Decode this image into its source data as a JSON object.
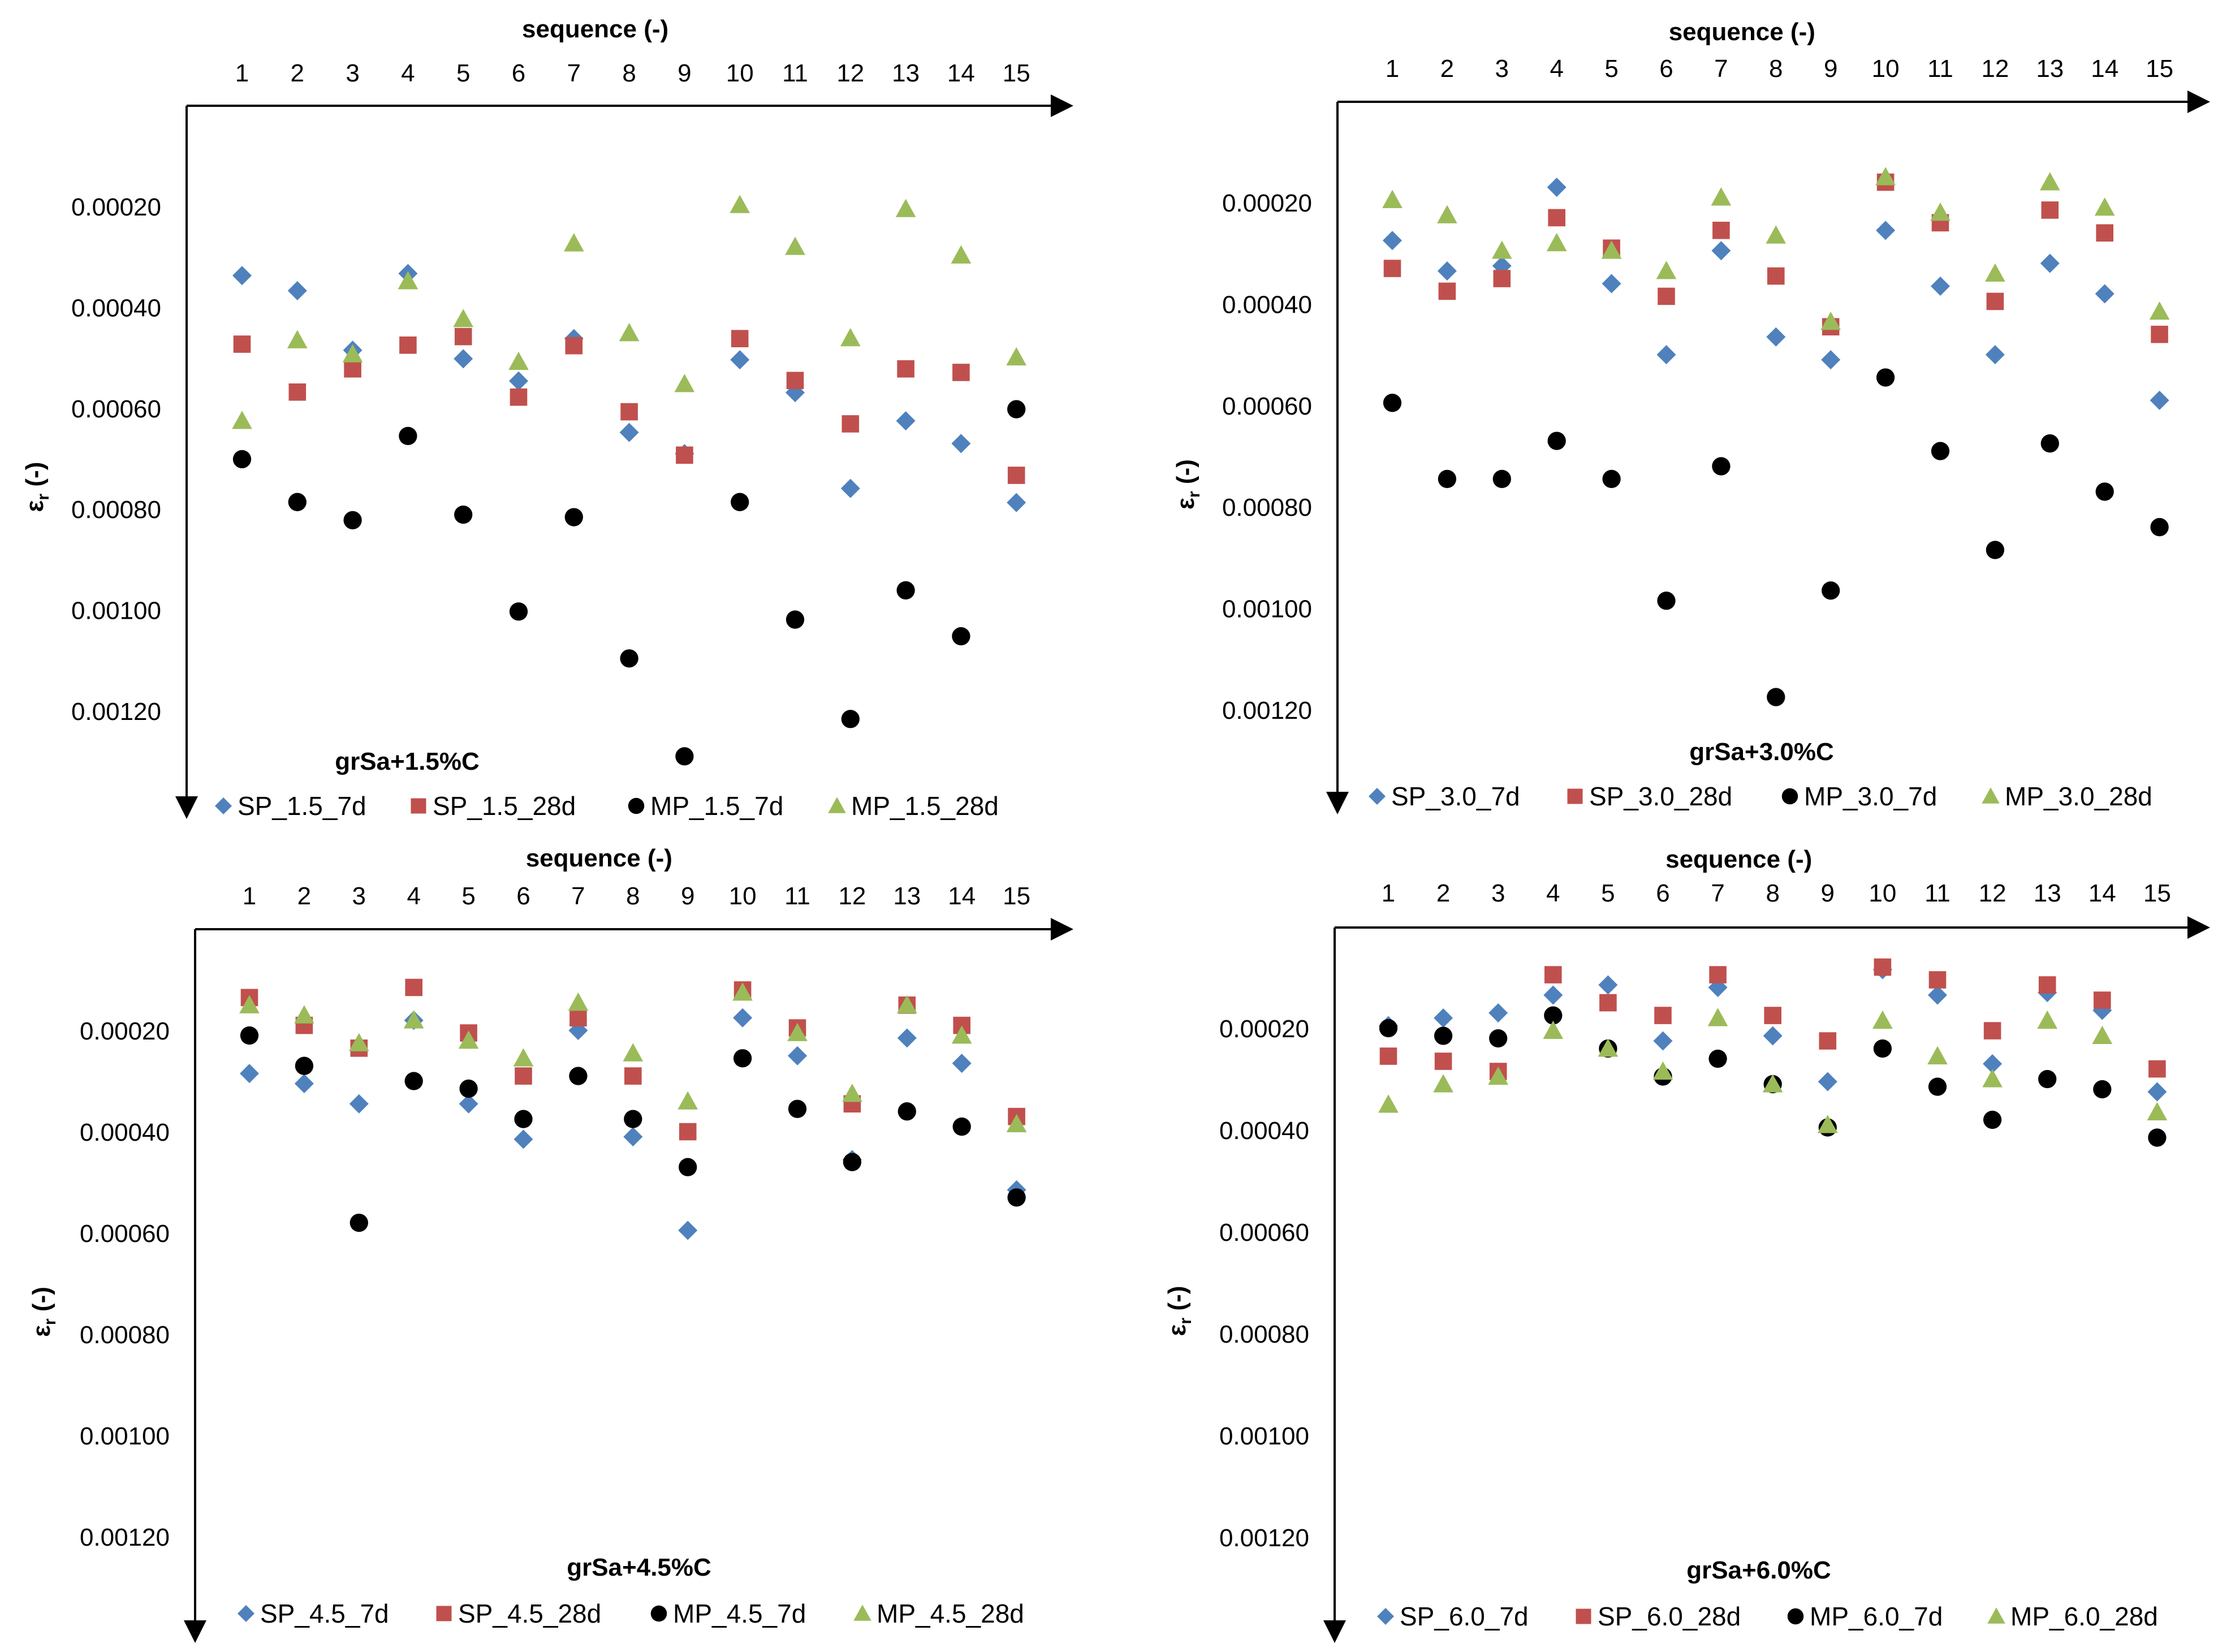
{
  "chart_data": [
    {
      "type": "scatter",
      "title": "grSa+1.5%C",
      "xlabel": "sequence (-)",
      "ylabel": "ε",
      "ylabel_sub": "r",
      "ylabel_suffix": " (-)",
      "x_ticks": [
        "1",
        "2",
        "3",
        "4",
        "5",
        "6",
        "7",
        "8",
        "9",
        "10",
        "11",
        "12",
        "13",
        "14",
        "15"
      ],
      "y_ticks": [
        "0.00020",
        "0.00040",
        "0.00060",
        "0.00080",
        "0.00100",
        "0.00120"
      ],
      "ylim": [
        0,
        0.0014
      ],
      "y_inverted": true,
      "x": [
        1,
        2,
        3,
        4,
        5,
        6,
        7,
        8,
        9,
        10,
        11,
        12,
        13,
        14,
        15
      ],
      "series": [
        {
          "name": "SP_1.5_7d",
          "marker": "diamond",
          "color": "#4F81BD",
          "values": [
            0.000337,
            0.000367,
            0.000485,
            0.000333,
            0.000502,
            0.000546,
            0.000462,
            0.000648,
            0.00069,
            0.000504,
            0.000569,
            0.000759,
            0.000625,
            0.00067,
            0.000787
          ]
        },
        {
          "name": "SP_1.5_28d",
          "marker": "square",
          "color": "#C0504D",
          "values": [
            0.000473,
            0.000568,
            0.000522,
            0.000475,
            0.000458,
            0.000578,
            0.000476,
            0.000607,
            0.000693,
            0.000462,
            0.000545,
            0.000631,
            0.000522,
            0.000529,
            0.000733
          ]
        },
        {
          "name": "MP_1.5_7d",
          "marker": "circle",
          "color": "#000000",
          "values": [
            0.000701,
            0.000786,
            0.000822,
            0.000655,
            0.000811,
            0.001003,
            0.000816,
            0.001096,
            0.00129,
            0.000786,
            0.001019,
            0.001216,
            0.000961,
            0.001052,
            0.000602
          ]
        },
        {
          "name": "MP_1.5_28d",
          "marker": "triangle",
          "color": "#9BBB59",
          "values": [
            0.000625,
            0.000465,
            0.000493,
            0.000348,
            0.000423,
            0.000508,
            0.000273,
            0.000451,
            0.000552,
            0.000197,
            0.00028,
            0.000461,
            0.000205,
            0.000297,
            0.000499
          ]
        }
      ]
    },
    {
      "type": "scatter",
      "title": "grSa+3.0%C",
      "xlabel": "sequence (-)",
      "ylabel": "ε",
      "ylabel_sub": "r",
      "ylabel_suffix": " (-)",
      "x_ticks": [
        "1",
        "2",
        "3",
        "4",
        "5",
        "6",
        "7",
        "8",
        "9",
        "10",
        "11",
        "12",
        "13",
        "14",
        "15"
      ],
      "y_ticks": [
        "0.00020",
        "0.00040",
        "0.00060",
        "0.00080",
        "0.00100",
        "0.00120"
      ],
      "ylim": [
        0,
        0.0014
      ],
      "y_inverted": true,
      "x": [
        1,
        2,
        3,
        4,
        5,
        6,
        7,
        8,
        9,
        10,
        11,
        12,
        13,
        14,
        15
      ],
      "series": [
        {
          "name": "SP_3.0_7d",
          "marker": "diamond",
          "color": "#4F81BD",
          "values": [
            0.000275,
            0.000335,
            0.000325,
            0.00017,
            0.00036,
            0.0005,
            0.000295,
            0.000465,
            0.00051,
            0.000255,
            0.000365,
            0.0005,
            0.00032,
            0.00038,
            0.00059
          ]
        },
        {
          "name": "SP_3.0_28d",
          "marker": "square",
          "color": "#C0504D",
          "values": [
            0.00033,
            0.000375,
            0.00035,
            0.00023,
            0.00029,
            0.000385,
            0.000255,
            0.000345,
            0.000445,
            0.00016,
            0.00024,
            0.000395,
            0.000215,
            0.00026,
            0.00046
          ]
        },
        {
          "name": "MP_3.0_7d",
          "marker": "circle",
          "color": "#000000",
          "values": [
            0.000595,
            0.000745,
            0.000745,
            0.00067,
            0.000745,
            0.000985,
            0.00072,
            0.001175,
            0.000965,
            0.000545,
            0.00069,
            0.000885,
            0.000675,
            0.00077,
            0.00084
          ]
        },
        {
          "name": "MP_3.0_28d",
          "marker": "triangle",
          "color": "#9BBB59",
          "values": [
            0.000195,
            0.000225,
            0.000295,
            0.00028,
            0.000295,
            0.000335,
            0.00019,
            0.000265,
            0.000435,
            0.00015,
            0.00022,
            0.00034,
            0.00016,
            0.00021,
            0.000415
          ]
        }
      ]
    },
    {
      "type": "scatter",
      "title": "grSa+4.5%C",
      "xlabel": "sequence (-)",
      "ylabel": "ε",
      "ylabel_sub": "r",
      "ylabel_suffix": " (-)",
      "x_ticks": [
        "1",
        "2",
        "3",
        "4",
        "5",
        "6",
        "7",
        "8",
        "9",
        "10",
        "11",
        "12",
        "13",
        "14",
        "15"
      ],
      "y_ticks": [
        "0.00020",
        "0.00040",
        "0.00060",
        "0.00080",
        "0.00100",
        "0.00120"
      ],
      "ylim": [
        0,
        0.0014
      ],
      "y_inverted": true,
      "x": [
        1,
        2,
        3,
        4,
        5,
        6,
        7,
        8,
        9,
        10,
        11,
        12,
        13,
        14,
        15
      ],
      "series": [
        {
          "name": "SP_4.5_7d",
          "marker": "diamond",
          "color": "#4F81BD",
          "values": [
            0.000285,
            0.000305,
            0.000345,
            0.00018,
            0.000345,
            0.000415,
            0.0002,
            0.00041,
            0.000595,
            0.000175,
            0.00025,
            0.000455,
            0.000215,
            0.000265,
            0.000515
          ]
        },
        {
          "name": "SP_4.5_28d",
          "marker": "square",
          "color": "#C0504D",
          "values": [
            0.000135,
            0.00019,
            0.000235,
            0.000115,
            0.000205,
            0.00029,
            0.000175,
            0.00029,
            0.0004,
            0.00012,
            0.000195,
            0.000345,
            0.00015,
            0.00019,
            0.00037
          ]
        },
        {
          "name": "MP_4.5_7d",
          "marker": "circle",
          "color": "#000000",
          "values": [
            0.00021,
            0.00027,
            0.00058,
            0.0003,
            0.000315,
            0.000375,
            0.00029,
            0.000375,
            0.00047,
            0.000255,
            0.000355,
            0.00046,
            0.00036,
            0.00039,
            0.00053
          ]
        },
        {
          "name": "MP_4.5_28d",
          "marker": "triangle",
          "color": "#9BBB59",
          "values": [
            0.00015,
            0.00017,
            0.000225,
            0.00018,
            0.00022,
            0.000255,
            0.000145,
            0.000245,
            0.00034,
            0.000125,
            0.000205,
            0.000325,
            0.00015,
            0.00021,
            0.000385
          ]
        }
      ]
    },
    {
      "type": "scatter",
      "title": "grSa+6.0%C",
      "xlabel": "sequence (-)",
      "ylabel": "ε",
      "ylabel_sub": "r",
      "ylabel_suffix": " (-)",
      "x_ticks": [
        "1",
        "2",
        "3",
        "4",
        "5",
        "6",
        "7",
        "8",
        "9",
        "10",
        "11",
        "12",
        "13",
        "14",
        "15"
      ],
      "y_ticks": [
        "0.00020",
        "0.00040",
        "0.00060",
        "0.00080",
        "0.00100",
        "0.00120"
      ],
      "ylim": [
        0,
        0.0014
      ],
      "y_inverted": true,
      "x": [
        1,
        2,
        3,
        4,
        5,
        6,
        7,
        8,
        9,
        10,
        11,
        12,
        13,
        14,
        15
      ],
      "series": [
        {
          "name": "SP_6.0_7d",
          "marker": "diamond",
          "color": "#4F81BD",
          "values": [
            0.000195,
            0.00018,
            0.00017,
            0.000135,
            0.000115,
            0.000225,
            0.00012,
            0.000215,
            0.000305,
            8.5e-05,
            0.000135,
            0.00027,
            0.00013,
            0.000165,
            0.000325
          ]
        },
        {
          "name": "SP_6.0_28d",
          "marker": "square",
          "color": "#C0504D",
          "values": [
            0.000255,
            0.000265,
            0.000285,
            9.5e-05,
            0.00015,
            0.000175,
            9.5e-05,
            0.000175,
            0.000225,
            8e-05,
            0.000105,
            0.000205,
            0.000115,
            0.000145,
            0.00028
          ]
        },
        {
          "name": "MP_6.0_7d",
          "marker": "circle",
          "color": "#000000",
          "values": [
            0.0002,
            0.000215,
            0.00022,
            0.000175,
            0.00024,
            0.000295,
            0.00026,
            0.00031,
            0.000395,
            0.00024,
            0.000315,
            0.00038,
            0.0003,
            0.00032,
            0.000415
          ]
        },
        {
          "name": "MP_6.0_28d",
          "marker": "triangle",
          "color": "#9BBB59",
          "values": [
            0.00035,
            0.00031,
            0.000295,
            0.000205,
            0.00024,
            0.000285,
            0.00018,
            0.00031,
            0.00039,
            0.000185,
            0.000255,
            0.0003,
            0.000185,
            0.000215,
            0.000365
          ]
        }
      ]
    }
  ]
}
